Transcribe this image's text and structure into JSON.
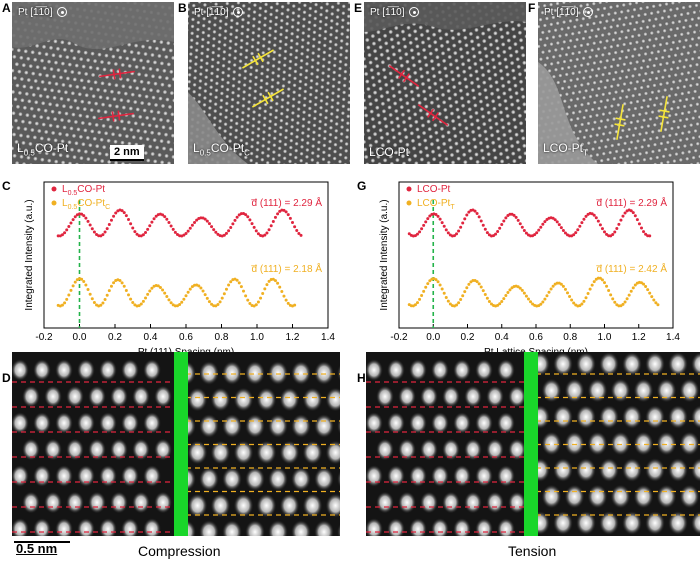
{
  "panels": {
    "A": {
      "letter": "A",
      "zone": "Pt [1̅1̅0]",
      "label": "L0.5CO-Pt",
      "label_main": "L",
      "label_sub": "0.5",
      "label_tail": "CO-Pt",
      "scale": "2 nm"
    },
    "B": {
      "letter": "B",
      "zone": "Pt [1̅1̅0]",
      "label_main": "L",
      "label_sub": "0.5",
      "label_tail": "CO-Pt",
      "label_sub2": "C"
    },
    "E": {
      "letter": "E",
      "zone": "Pt [1̅1̅0]",
      "label_main": "LCO-Pt"
    },
    "F": {
      "letter": "F",
      "zone": "Pt [1̅1̅0]",
      "label_main": "LCO-Pt",
      "label_sub2": "T"
    },
    "C": {
      "letter": "C"
    },
    "G": {
      "letter": "G"
    },
    "D": {
      "letter": "D",
      "scale": "0.5 nm",
      "caption": "Compression"
    },
    "H": {
      "letter": "H",
      "caption": "Tension"
    }
  },
  "colors": {
    "red": "#e0253f",
    "orange": "#f0b022",
    "green_marker": "#23b34a",
    "green_bar": "#19d62a"
  },
  "chart_data": [
    {
      "type": "scatter",
      "panel": "C",
      "ylabel": "Integrated Intensity (a.u.)",
      "xlabel": "Pt (111) Spacing (nm)",
      "xlim": [
        -0.2,
        1.4
      ],
      "xticks": [
        "-0.2",
        "0.0",
        "0.2",
        "0.4",
        "0.6",
        "0.8",
        "1.0",
        "1.2",
        "1.4"
      ],
      "series": [
        {
          "name_main": "L",
          "name_sub": "0.5",
          "name_tail": "CO-Pt",
          "name_sub2": "",
          "color": "#e0253f",
          "annotation_d": "d̅ (111) = 2.29 Å",
          "peaks": [
            0.0,
            0.229,
            0.458,
            0.687,
            0.916,
            1.145
          ],
          "x_range": [
            -0.12,
            1.25
          ]
        },
        {
          "name_main": "L",
          "name_sub": "0.5",
          "name_tail": "CO-Pt",
          "name_sub2": "C",
          "color": "#f0b022",
          "annotation_d": "d̅ (111) = 2.18 Å",
          "peaks": [
            0.0,
            0.218,
            0.436,
            0.654,
            0.872,
            1.09
          ],
          "x_range": [
            -0.12,
            1.22
          ]
        }
      ]
    },
    {
      "type": "scatter",
      "panel": "G",
      "ylabel": "Integrated Intensity (a.u.)",
      "xlabel": "Pt Lattice Spacing (nm)",
      "xlim": [
        -0.2,
        1.4
      ],
      "xticks": [
        "-0.2",
        "0.0",
        "0.2",
        "0.4",
        "0.6",
        "0.8",
        "1.0",
        "1.2",
        "1.4"
      ],
      "series": [
        {
          "name_main": "LCO-Pt",
          "name_sub2": "",
          "color": "#e0253f",
          "annotation_d": "d̅ (111) = 2.29 Å",
          "peaks": [
            0.0,
            0.229,
            0.458,
            0.687,
            0.916,
            1.145
          ],
          "x_range": [
            -0.14,
            1.27
          ]
        },
        {
          "name_main": "LCO-Pt",
          "name_sub2": "T",
          "color": "#f0b022",
          "annotation_d": "d̅ (111) = 2.42 Å",
          "peaks": [
            0.0,
            0.242,
            0.484,
            0.726,
            0.968,
            1.21
          ],
          "x_range": [
            -0.14,
            1.32
          ]
        }
      ]
    }
  ]
}
